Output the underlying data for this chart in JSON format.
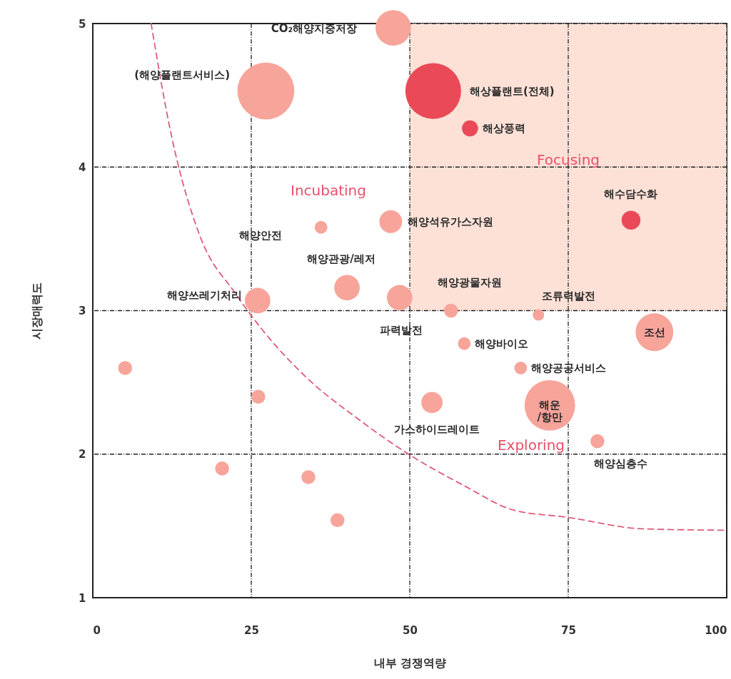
{
  "chart_data": {
    "type": "bubble",
    "xlabel": "내부 경쟁역량",
    "ylabel": "시장매력도",
    "xlim": [
      0,
      100
    ],
    "ylim": [
      1,
      5
    ],
    "xticks": [
      0,
      25,
      50,
      75,
      100
    ],
    "yticks": [
      1,
      2,
      3,
      4,
      5
    ],
    "grid": true,
    "bands": [
      {
        "axis": "x",
        "from": 50,
        "to": 100,
        "color": "#fde1d7"
      }
    ],
    "series": [
      {
        "color": "#f7a49a",
        "x": [
          47.4,
          27.3,
          47.0,
          36.0,
          40.1,
          26.0,
          48.4,
          56.5,
          70.3,
          88.6,
          58.6,
          67.5,
          72.1,
          53.5,
          79.6,
          5.1,
          26.1,
          20.4,
          34.0,
          38.6
        ],
        "values": [
          4.97,
          4.53,
          3.62,
          3.58,
          3.16,
          3.07,
          3.09,
          3.0,
          2.97,
          2.85,
          2.77,
          2.6,
          2.34,
          2.36,
          2.09,
          2.6,
          2.4,
          1.9,
          1.84,
          1.54
        ],
        "sizes": [
          0.39,
          1,
          0.16,
          0.05,
          0.2,
          0.2,
          0.2,
          0.06,
          0.04,
          0.44,
          0.05,
          0.05,
          0.79,
          0.14,
          0.06,
          0.06,
          0.06,
          0.06,
          0.06,
          0.06
        ]
      },
      {
        "color": "#ea4a57",
        "x": [
          53.7,
          59.5,
          84.9
        ],
        "values": [
          4.53,
          4.27,
          3.63
        ],
        "sizes": [
          0.96,
          0.08,
          0.11
        ]
      },
      {
        "type": "line",
        "color": "#e05a78",
        "line_style": "dashed",
        "x": [
          9.2,
          12.4,
          16.9,
          22.5,
          26.5,
          33.8,
          41.7,
          49.8,
          58.6,
          66.4,
          74.9,
          86.7,
          100
        ],
        "values": [
          5.0,
          4.22,
          3.52,
          3.12,
          2.88,
          2.53,
          2.25,
          2.0,
          1.78,
          1.61,
          1.56,
          1.48,
          1.47
        ]
      }
    ],
    "annotations": [
      "CO₂해양지중저장",
      "(해양플랜트서비스)",
      "해상플랜트(전체)",
      {
        "text": "해상풍력",
        "x": 59.5,
        "y": 4.27
      },
      {
        "text": "해수담수화",
        "x": 84.9,
        "y": 3.63
      },
      {
        "text": "해양석유가스자원",
        "x": 47.0,
        "y": 3.62
      },
      "해양안전",
      {
        "text": "해양관광/레저",
        "x": 40.1,
        "y": 3.16
      },
      {
        "text": "해양쓰레기처리",
        "x": 26.0,
        "y": 3.07
      },
      {
        "text": "파력발전",
        "x": 48.4,
        "y": 3.09
      },
      {
        "text": "해양광물자원",
        "x": 56.5,
        "y": 3.0
      },
      {
        "text": "조류력발전",
        "x": 70.3,
        "y": 2.97
      },
      {
        "text": "조선",
        "x": 88.6,
        "y": 2.85
      },
      {
        "text": "해양바이오",
        "x": 58.6,
        "y": 2.77
      },
      {
        "text": "해양공공서비스",
        "x": 67.5,
        "y": 2.6
      },
      {
        "text": "해운\n/항만",
        "x": 72.1,
        "y": 2.34
      },
      {
        "text": "가스하이드레이트",
        "x": 53.5,
        "y": 2.36
      },
      {
        "text": "해양심층수",
        "x": 79.6,
        "y": 2.09
      },
      "Incubating",
      "Focusing",
      "Exploring"
    ]
  }
}
